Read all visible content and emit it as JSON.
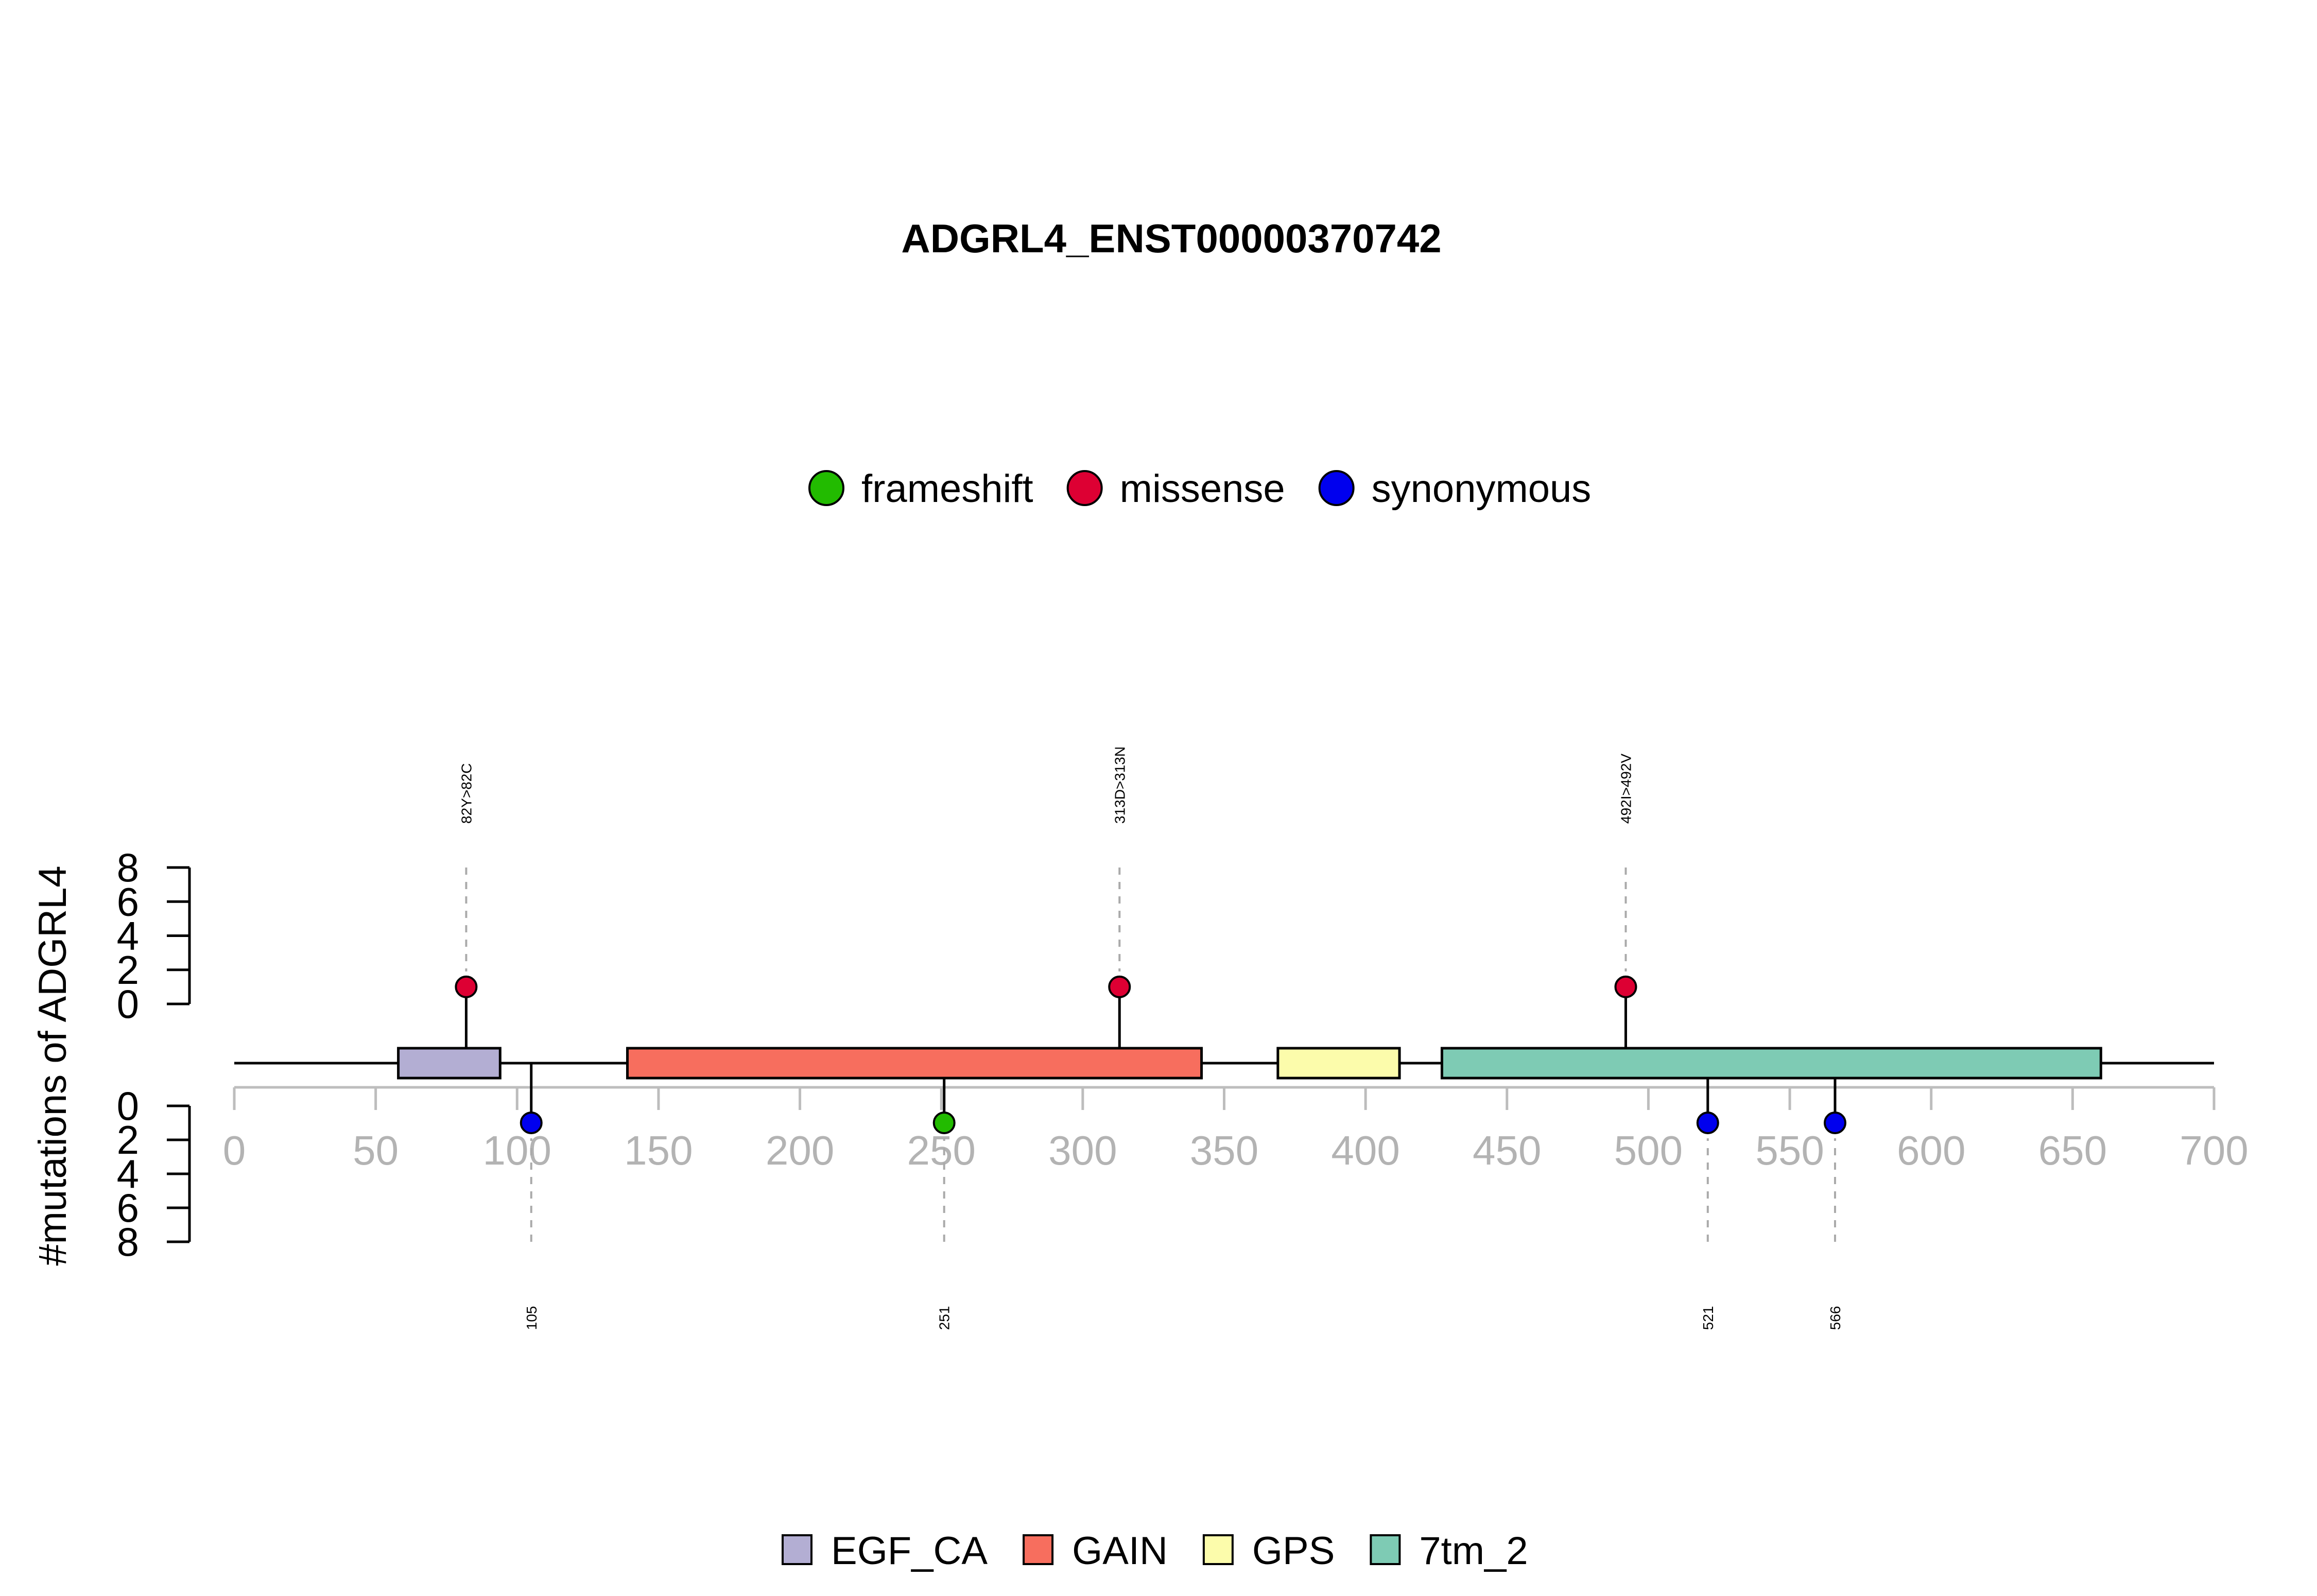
{
  "chart_data": {
    "type": "lollipop",
    "title": "ADGRL4_ENST00000370742",
    "ylabel": "#mutations of ADGRL4",
    "xlim": [
      0,
      700
    ],
    "x_ticks": [
      "0",
      "50",
      "100",
      "150",
      "200",
      "250",
      "300",
      "350",
      "400",
      "450",
      "500",
      "550",
      "600",
      "650",
      "700"
    ],
    "ylim": [
      0,
      8
    ],
    "y_ticks": [
      "0",
      "2",
      "4",
      "6",
      "8"
    ],
    "mutation_legend": [
      {
        "name": "frameshift",
        "color": "#22bb00"
      },
      {
        "name": "missense",
        "color": "#dd0033"
      },
      {
        "name": "synonymous",
        "color": "#0000ee"
      }
    ],
    "domains": [
      {
        "name": "EGF_CA",
        "start": 58,
        "end": 94,
        "color": "#b3aed3"
      },
      {
        "name": "GAIN",
        "start": 139,
        "end": 342,
        "color": "#f76e5e"
      },
      {
        "name": "GPS",
        "start": 369,
        "end": 412,
        "color": "#fcfcab"
      },
      {
        "name": "7tm_2",
        "start": 427,
        "end": 660,
        "color": "#7ecbb4"
      }
    ],
    "mutations": [
      {
        "position": 82,
        "count": 1,
        "type": "missense",
        "side": "top",
        "label": "82Y>82C"
      },
      {
        "position": 313,
        "count": 1,
        "type": "missense",
        "side": "top",
        "label": "313D>313N"
      },
      {
        "position": 492,
        "count": 1,
        "type": "missense",
        "side": "top",
        "label": "492I>492V"
      },
      {
        "position": 105,
        "count": 1,
        "type": "synonymous",
        "side": "bottom",
        "label": "105"
      },
      {
        "position": 251,
        "count": 1,
        "type": "frameshift",
        "side": "bottom",
        "label": "251"
      },
      {
        "position": 521,
        "count": 1,
        "type": "synonymous",
        "side": "bottom",
        "label": "521"
      },
      {
        "position": 566,
        "count": 1,
        "type": "synonymous",
        "side": "bottom",
        "label": "566"
      }
    ]
  }
}
